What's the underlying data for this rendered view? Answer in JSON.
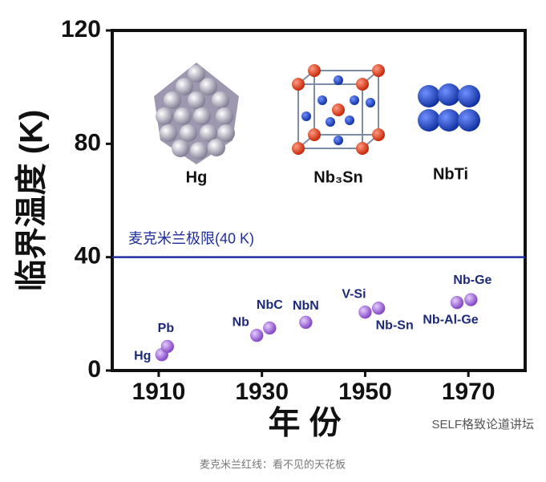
{
  "chart_data": {
    "type": "scatter",
    "ylabel": "临界温度 (K)",
    "xlabel": "年 份",
    "xlim": [
      1901,
      1981
    ],
    "ylim": [
      0,
      120
    ],
    "xticks": [
      1910,
      1930,
      1950,
      1970
    ],
    "yticks": [
      0,
      40,
      80,
      120
    ],
    "color": "#9b5fd6",
    "x": [
      1910.6,
      1911.7,
      1929,
      1931.5,
      1938.5,
      1950,
      1952.6,
      1967.8,
      1970.5
    ],
    "values": [
      5.6,
      8.5,
      12.4,
      15,
      17,
      20.6,
      22,
      24,
      25
    ],
    "point_labels": [
      "Hg",
      "Pb",
      "Nb",
      "NbC",
      "NbN",
      "V-Si",
      "Nb-Sn",
      "Nb-Al-Ge",
      "Nb-Ge"
    ],
    "limit_line": {
      "value": 40,
      "label": "麦克米兰极限(40 K)",
      "color": "#1f2d9c"
    },
    "illustrations": [
      "Hg",
      "Nb₃Sn",
      "NbTi"
    ]
  },
  "watermark": "SELF格致论道讲坛",
  "caption": "麦克米兰红线：看不见的天花板"
}
